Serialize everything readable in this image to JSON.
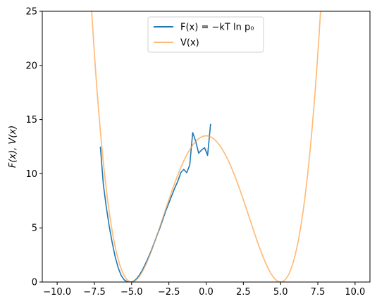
{
  "chart_data": {
    "type": "line",
    "xlim": [
      -11,
      11
    ],
    "ylim": [
      0,
      25
    ],
    "xticks": [
      -10.0,
      -7.5,
      -5.0,
      -2.5,
      0.0,
      2.5,
      5.0,
      7.5,
      10.0
    ],
    "xtick_labels": [
      "−10.0",
      "−7.5",
      "−5.0",
      "−2.5",
      "0.0",
      "2.5",
      "5.0",
      "7.5",
      "10.0"
    ],
    "yticks": [
      0,
      5,
      10,
      15,
      20,
      25
    ],
    "ytick_labels": [
      "0",
      "5",
      "10",
      "15",
      "20",
      "25"
    ],
    "ylabel": "F(x), V(x)",
    "xlabel": "",
    "grid": false,
    "legend_position": "top-center",
    "series": [
      {
        "name": "F(x) = −kT ln p₀",
        "color": "#1f77b4",
        "x": [
          -7.1,
          -6.9,
          -6.7,
          -6.5,
          -6.3,
          -6.1,
          -5.9,
          -5.7,
          -5.5,
          -5.3,
          -5.1,
          -4.9,
          -4.7,
          -4.5,
          -4.3,
          -4.1,
          -3.9,
          -3.7,
          -3.5,
          -3.3,
          -3.1,
          -2.9,
          -2.7,
          -2.5,
          -2.3,
          -2.1,
          -1.9,
          -1.7,
          -1.5,
          -1.3,
          -1.1,
          -0.9,
          -0.7,
          -0.5,
          -0.3,
          -0.1,
          0.1,
          0.3
        ],
        "y": [
          12.5,
          9.0,
          6.9,
          5.1,
          3.6,
          2.3,
          1.3,
          0.6,
          0.2,
          0.02,
          0.0,
          0.05,
          0.25,
          0.6,
          1.05,
          1.6,
          2.2,
          2.85,
          3.55,
          4.3,
          5.0,
          5.8,
          6.6,
          7.3,
          8.0,
          8.7,
          9.3,
          10.1,
          10.4,
          10.1,
          10.8,
          13.8,
          13.0,
          11.9,
          12.2,
          12.4,
          11.7,
          14.6
        ]
      },
      {
        "name": "V(x)",
        "color": "#ffbb78",
        "function": "V(x) = 13.5 * (1 - (x/5)^2)^2",
        "x_range": [
          -8.5,
          8.5
        ]
      }
    ]
  }
}
